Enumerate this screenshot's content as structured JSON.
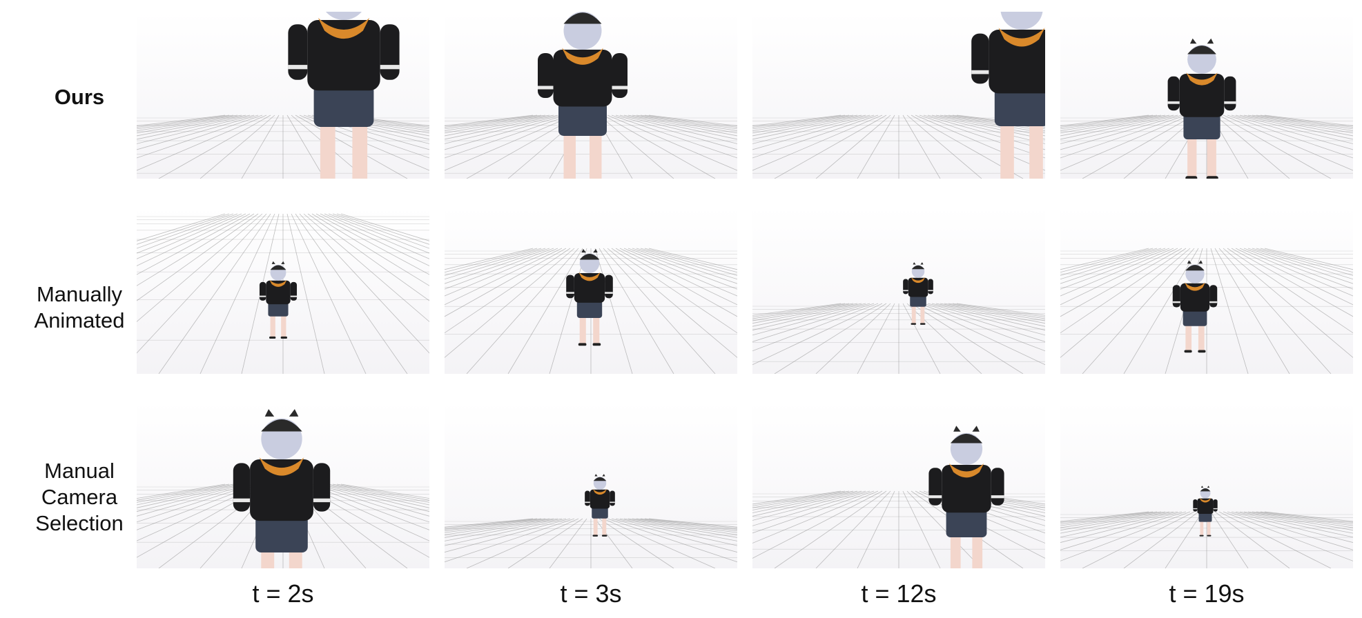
{
  "rows": [
    {
      "label_lines": [
        "Ours"
      ],
      "bold": true
    },
    {
      "label_lines": [
        "Manually",
        "Animated"
      ],
      "bold": false
    },
    {
      "label_lines": [
        "Manual",
        "Camera",
        "Selection"
      ],
      "bold": false
    }
  ],
  "time_labels": [
    "t = 2s",
    "t = 3s",
    "t = 12s",
    "t = 19s"
  ],
  "frame_description_names": [
    [
      "back-view-large",
      "front-arms-out",
      "side-cropped-right",
      "front-full-small"
    ],
    [
      "back-view-small",
      "front-arms-out-small",
      "tiny-figure",
      "walking-small"
    ],
    [
      "back-view-closeup",
      "front-tiny",
      "side-medium",
      "front-tiny-far"
    ]
  ],
  "colors": {
    "jacket": "#1c1c1e",
    "hood": "#d9892b",
    "hair": "#c9cde0",
    "skin": "#f3d6cc",
    "shorts": "#3b4456",
    "cap": "#2a2a2a",
    "grid": "#8a8a8a"
  }
}
